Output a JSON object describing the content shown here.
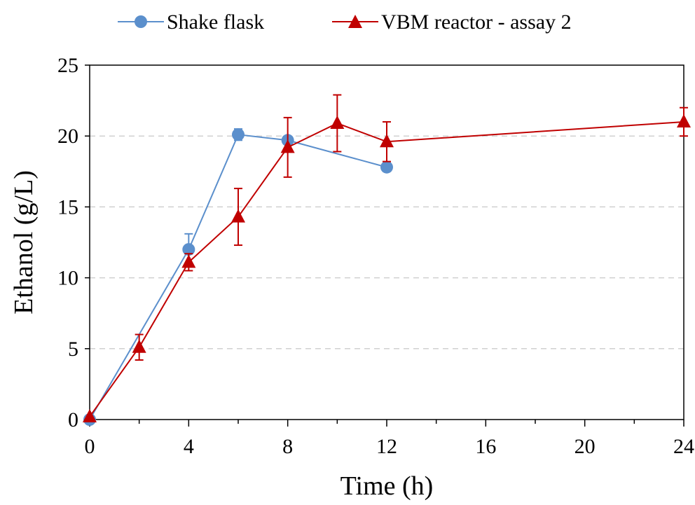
{
  "chart_data": {
    "type": "line",
    "xlabel": "Time (h)",
    "ylabel": "Ethanol (g/L)",
    "xlim": [
      0,
      24
    ],
    "ylim": [
      0,
      25
    ],
    "x_ticks": [
      0,
      4,
      8,
      12,
      16,
      20,
      24
    ],
    "y_ticks": [
      0,
      5,
      10,
      15,
      20,
      25
    ],
    "grid": "horizontal dashed",
    "legend_position": "top",
    "series": [
      {
        "name": "Shake flask",
        "marker": "circle",
        "color": "#5b8fcc",
        "x": [
          0,
          4,
          6,
          8,
          12
        ],
        "y": [
          0.0,
          12.0,
          20.1,
          19.7,
          17.8
        ],
        "error": [
          0.0,
          1.1,
          0.4,
          0.0,
          0.0
        ]
      },
      {
        "name": "VBM reactor - assay 2",
        "marker": "triangle",
        "color": "#c00000",
        "x": [
          0,
          2,
          4,
          6,
          8,
          10,
          12,
          24
        ],
        "y": [
          0.2,
          5.1,
          11.1,
          14.3,
          19.2,
          20.9,
          19.6,
          21.0
        ],
        "error": [
          0.0,
          0.9,
          0.6,
          2.0,
          2.1,
          2.0,
          1.4,
          1.0
        ]
      }
    ]
  }
}
